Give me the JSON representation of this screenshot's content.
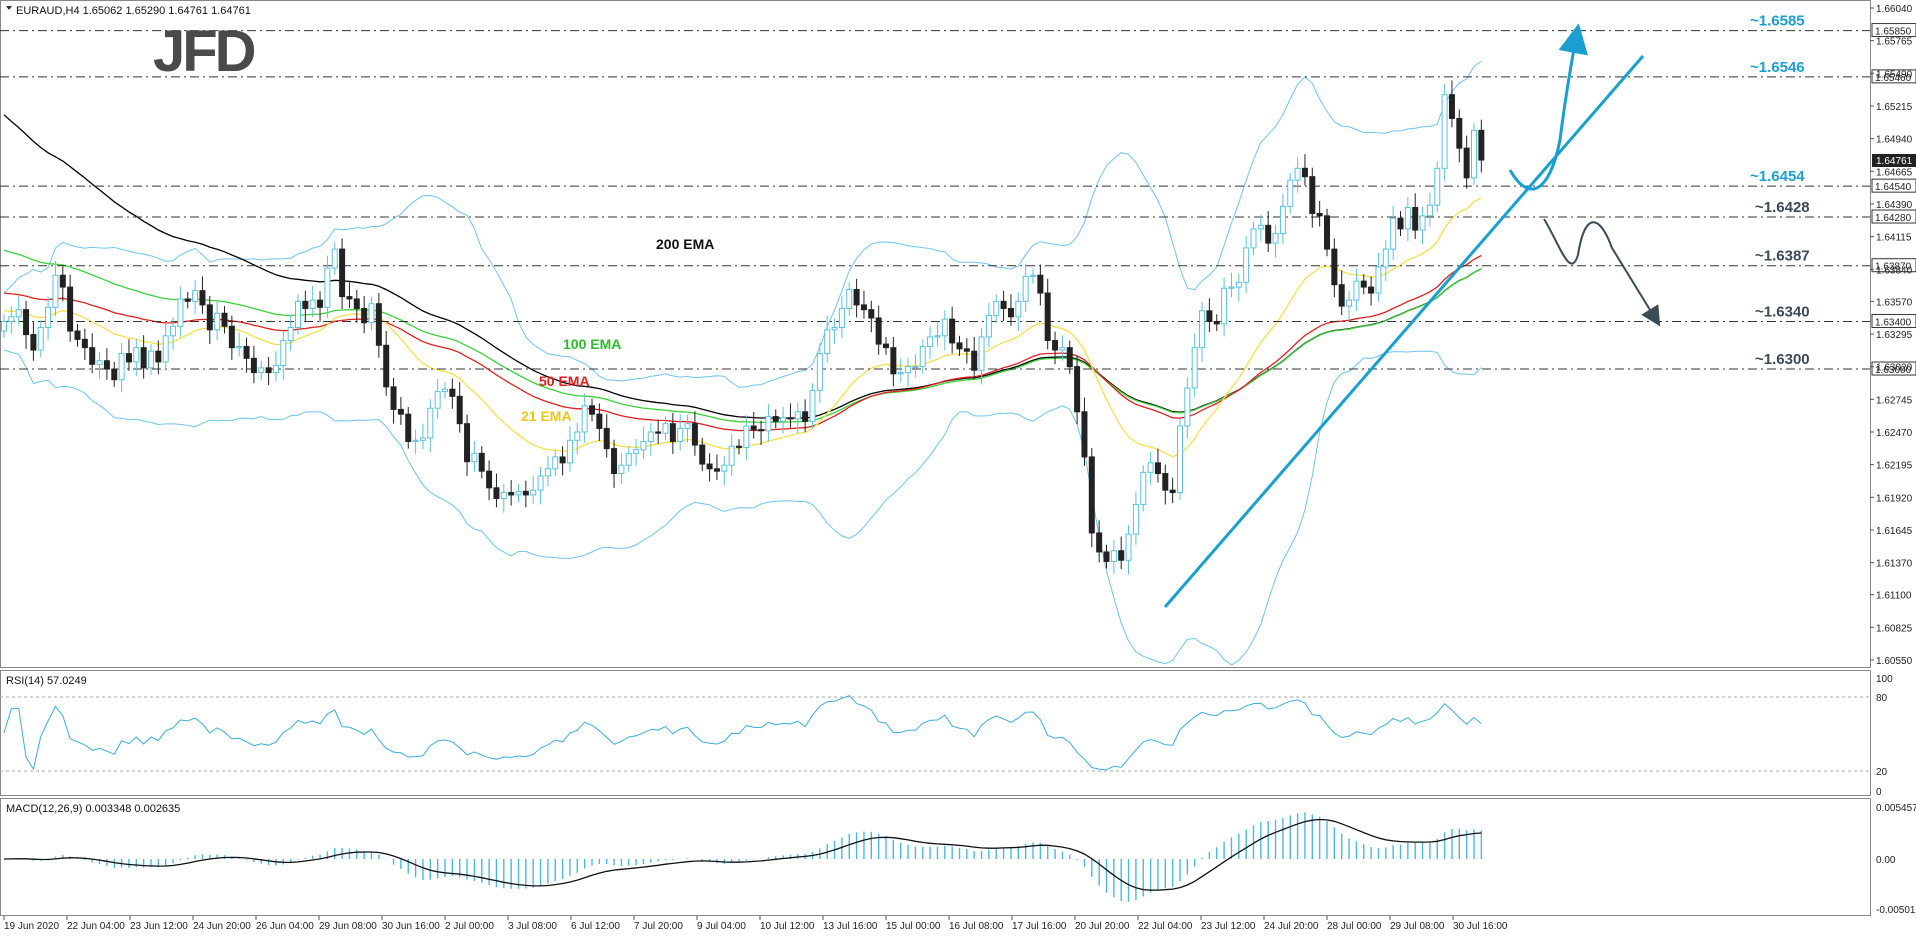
{
  "instrument": {
    "header": "EURAUD,H4  1.65062 1.65290 1.64761 1.64761"
  },
  "brand": {
    "logo": "JFD"
  },
  "colors": {
    "bull": "#5bc0de",
    "bear": "#222222",
    "ema200": "#000000",
    "ema100": "#3ad13a",
    "ema50": "#e02020",
    "ema21": "#f5e04a",
    "bands": "#6ec4ec",
    "annot": "#1a9fd0",
    "annot_down": "#3b4b55"
  },
  "chart_data": {
    "type": "candlestick",
    "price_axis_ticks": [
      "1.66040",
      "1.65765",
      "1.65490",
      "1.65215",
      "1.64940",
      "1.64665",
      "1.64390",
      "1.64115",
      "1.63840",
      "1.63570",
      "1.63295",
      "1.63020",
      "1.62745",
      "1.62470",
      "1.62195",
      "1.61920",
      "1.61645",
      "1.61370",
      "1.61100",
      "1.60825",
      "1.60550"
    ],
    "time_axis_labels": [
      "19 Jun 2020",
      "22 Jun 04:00",
      "23 Jun 12:00",
      "24 Jun 20:00",
      "26 Jun 04:00",
      "29 Jun 08:00",
      "30 Jun 16:00",
      "2 Jul 00:00",
      "3 Jul 08:00",
      "6 Jul 12:00",
      "7 Jul 20:00",
      "9 Jul 04:00",
      "10 Jul 12:00",
      "13 Jul 16:00",
      "15 Jul 00:00",
      "16 Jul 08:00",
      "17 Jul 16:00",
      "20 Jul 20:00",
      "22 Jul 04:00",
      "23 Jul 12:00",
      "24 Jul 20:00",
      "28 Jul 00:00",
      "29 Jul 08:00",
      "30 Jul 16:00"
    ],
    "price_range": [
      1.6055,
      1.6604
    ],
    "current_price": "1.64761",
    "key_levels": [
      {
        "label": "~1.6585",
        "axis_label": "1.65850",
        "value": 1.6585
      },
      {
        "label": "~1.6546",
        "axis_label": "1.65460",
        "value": 1.6546
      },
      {
        "label": "~1.6454",
        "axis_label": "1.64540",
        "value": 1.6454
      },
      {
        "label": "~1.6428",
        "axis_label": "1.64280",
        "value": 1.6428
      },
      {
        "label": "~1.6387",
        "axis_label": "1.63870",
        "value": 1.6387
      },
      {
        "label": "~1.6340",
        "axis_label": "1.63400",
        "value": 1.634
      },
      {
        "label": "~1.6300",
        "axis_label": "1.63000",
        "value": 1.63
      }
    ],
    "ema_labels": [
      "200 EMA",
      "100 EMA",
      "50 EMA",
      "21 EMA"
    ],
    "candles_close": [
      1.634,
      1.6344,
      1.635,
      1.6329,
      1.6316,
      1.6335,
      1.6352,
      1.6379,
      1.6369,
      1.6332,
      1.6325,
      1.6318,
      1.6304,
      1.6307,
      1.63,
      1.6291,
      1.6313,
      1.6306,
      1.6318,
      1.6301,
      1.6315,
      1.6306,
      1.6328,
      1.6336,
      1.6359,
      1.6357,
      1.6366,
      1.6354,
      1.6333,
      1.6347,
      1.6336,
      1.6318,
      1.6319,
      1.6309,
      1.6297,
      1.6301,
      1.6297,
      1.6303,
      1.6324,
      1.6335,
      1.6357,
      1.6351,
      1.6358,
      1.6352,
      1.6385,
      1.6401,
      1.6361,
      1.6359,
      1.6351,
      1.6339,
      1.6355,
      1.632,
      1.6285,
      1.6266,
      1.6262,
      1.6239,
      1.624,
      1.6242,
      1.6267,
      1.6281,
      1.6283,
      1.6277,
      1.6254,
      1.6222,
      1.6229,
      1.6214,
      1.62,
      1.6191,
      1.6196,
      1.6194,
      1.6197,
      1.6194,
      1.6198,
      1.621,
      1.6216,
      1.6226,
      1.6221,
      1.624,
      1.6247,
      1.6269,
      1.6262,
      1.625,
      1.6233,
      1.6212,
      1.6219,
      1.6229,
      1.6232,
      1.6239,
      1.6247,
      1.6246,
      1.6254,
      1.6239,
      1.625,
      1.6254,
      1.6236,
      1.622,
      1.6216,
      1.6214,
      1.6219,
      1.6235,
      1.6234,
      1.6252,
      1.6249,
      1.6248,
      1.626,
      1.6256,
      1.6259,
      1.6258,
      1.6264,
      1.6256,
      1.6282,
      1.6313,
      1.6333,
      1.6335,
      1.6351,
      1.6367,
      1.6354,
      1.635,
      1.6343,
      1.6321,
      1.6318,
      1.6296,
      1.6297,
      1.6302,
      1.6302,
      1.6319,
      1.6327,
      1.6328,
      1.6342,
      1.6322,
      1.6317,
      1.6315,
      1.6299,
      1.6327,
      1.6345,
      1.6357,
      1.6351,
      1.6344,
      1.6357,
      1.6378,
      1.6379,
      1.6364,
      1.6324,
      1.6316,
      1.6318,
      1.6302,
      1.6264,
      1.6226,
      1.6162,
      1.6146,
      1.6138,
      1.6147,
      1.6139,
      1.6161,
      1.6186,
      1.6213,
      1.6221,
      1.6212,
      1.6198,
      1.6196,
      1.6252,
      1.6284,
      1.6318,
      1.6349,
      1.634,
      1.6338,
      1.6368,
      1.6369,
      1.6373,
      1.6402,
      1.6418,
      1.6421,
      1.6406,
      1.6414,
      1.6437,
      1.6459,
      1.6469,
      1.6462,
      1.6431,
      1.6429,
      1.6401,
      1.6371,
      1.6353,
      1.6358,
      1.6374,
      1.6369,
      1.6364,
      1.6386,
      1.6401,
      1.6427,
      1.6418,
      1.6436,
      1.6417,
      1.6429,
      1.6438,
      1.6469,
      1.6531,
      1.6511,
      1.6486,
      1.6461,
      1.6501,
      1.6476
    ],
    "rsi": {
      "label": "RSI(14) 57.0249",
      "levels": [
        "100",
        "80",
        "20",
        "0"
      ]
    },
    "macd": {
      "label": "MACD(12,26,9) 0.003348 0.002635",
      "ticks": [
        "0.005457",
        "0.00",
        "-0.00501"
      ]
    }
  }
}
